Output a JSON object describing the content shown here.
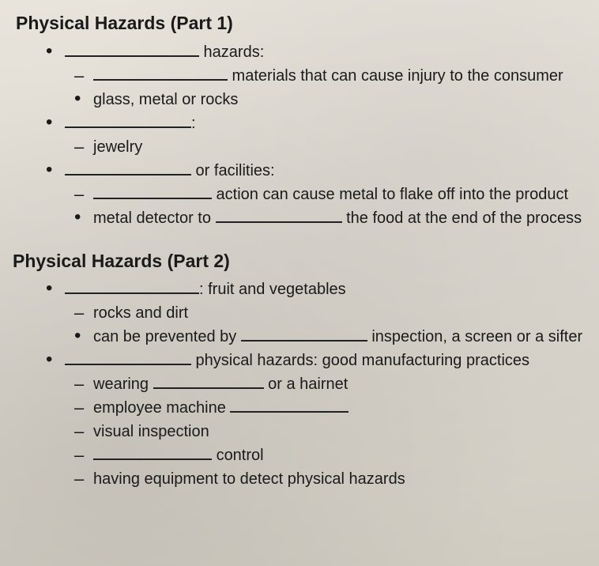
{
  "part1": {
    "heading": "Physical Hazards (Part 1)",
    "items": {
      "a_suffix": " hazards:",
      "a_sub1": " materials that can cause injury to the consumer",
      "a_sub2": "glass, metal or rocks",
      "b_suffix": ":",
      "b_sub1": "jewelry",
      "c_suffix": " or facilities:",
      "c_sub1_suffix": " action can cause metal to flake off into the product",
      "c_sub2_prefix": "metal detector to ",
      "c_sub2_suffix": " the food at the end of the process"
    }
  },
  "part2": {
    "heading": "Physical Hazards (Part 2)",
    "items": {
      "a_suffix": ": fruit and vegetables",
      "a_sub1": "rocks and dirt",
      "a_sub2_prefix": "can be prevented by ",
      "a_sub2_suffix": " inspection, a screen or a sifter",
      "b_suffix": " physical hazards: good manufacturing practices",
      "b_sub1_prefix": "wearing ",
      "b_sub1_suffix": " or a hairnet",
      "b_sub2_prefix": "employee machine ",
      "b_sub3": "visual inspection",
      "b_sub4_suffix": " control",
      "b_sub5": "having equipment to detect physical hazards"
    }
  },
  "style": {
    "background": "#e0dcd3",
    "text_color": "#1a1a1a",
    "heading_fontsize": 23,
    "body_fontsize": 20,
    "blank_underline_color": "#222222"
  }
}
